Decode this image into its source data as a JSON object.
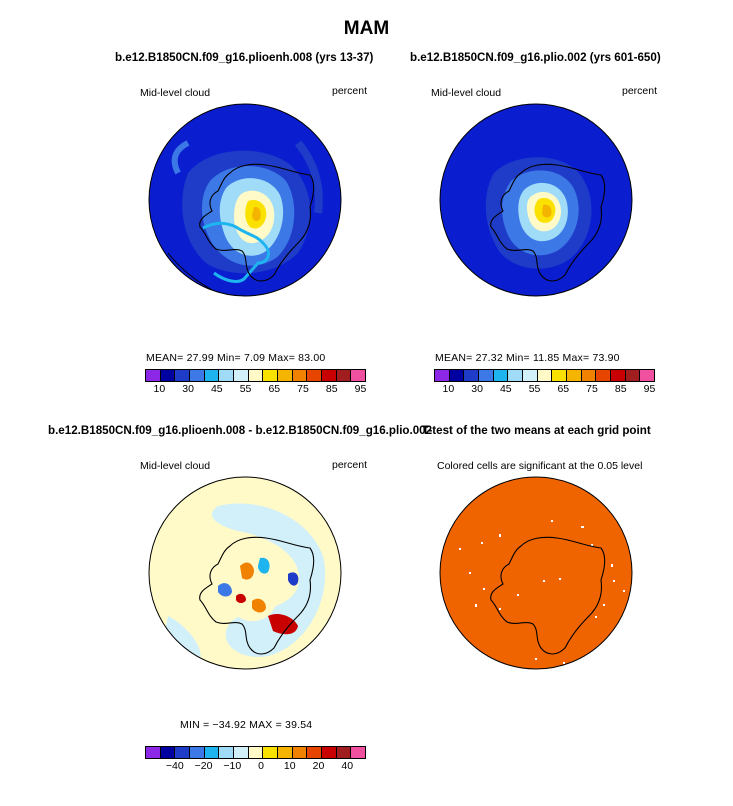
{
  "page_title": "MAM",
  "panels": {
    "p1": {
      "title": "b.e12.B1850CN.f09_g16.plioenh.008 (yrs 13-37)",
      "left_label": "Mid-level cloud",
      "right_label": "percent",
      "stats": "MEAN=   27.99   Min=     7.09   Max=   83.00"
    },
    "p2": {
      "title": "b.e12.B1850CN.f09_g16.plio.002 (yrs 601-650)",
      "left_label": "Mid-level cloud",
      "right_label": "percent",
      "stats": "MEAN=   27.32   Min=   11.85   Max=   73.90"
    },
    "p3": {
      "title": "b.e12.B1850CN.f09_g16.plioenh.008 - b.e12.B1850CN.f09_g16.plio.002",
      "left_label": "Mid-level cloud",
      "right_label": "percent",
      "stats": "MIN = −34.92 MAX =   39.54"
    },
    "p4": {
      "title": "T-test of the two means at each grid point",
      "subtitle": "Colored cells are significant at the 0.05 level"
    }
  },
  "colorbar_top": {
    "colors": [
      "#8c28e6",
      "#0000a0",
      "#1e3cc8",
      "#3c78e6",
      "#1eb4f0",
      "#a0dcf8",
      "#d2f0fa",
      "#fffac8",
      "#fae100",
      "#f5b400",
      "#f08200",
      "#e64600",
      "#c80000",
      "#a01e1e",
      "#f050a0"
    ],
    "labels": [
      "10",
      "30",
      "45",
      "55",
      "65",
      "75",
      "85",
      "95"
    ]
  },
  "colorbar_bottom": {
    "colors": [
      "#8c28e6",
      "#0000a0",
      "#1e3cc8",
      "#3c78e6",
      "#1eb4f0",
      "#a0dcf8",
      "#d2f0fa",
      "#fffac8",
      "#fae100",
      "#f5b400",
      "#f08200",
      "#e64600",
      "#c80000",
      "#a01e1e",
      "#f050a0"
    ],
    "labels": [
      "−40",
      "−20",
      "−10",
      "0",
      "10",
      "20",
      "40"
    ]
  },
  "map_colors": {
    "ocean_deep": "#0a1ecf",
    "difference_bg": "#fffac8",
    "difference_light": "#d2f0fa",
    "ttest_fill": "#f06400"
  }
}
